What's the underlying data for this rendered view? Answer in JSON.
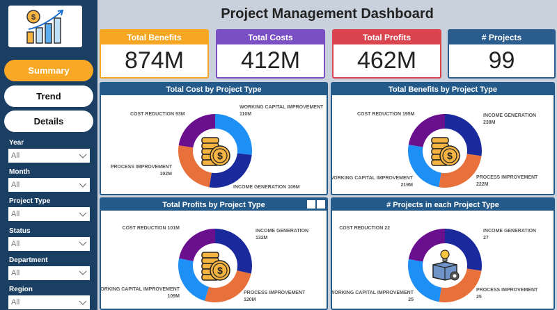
{
  "title": "Project Management Dashboard",
  "sidebar": {
    "nav": [
      {
        "label": "Summary",
        "active": true
      },
      {
        "label": "Trend"
      },
      {
        "label": "Details"
      }
    ],
    "filters": [
      {
        "label": "Year",
        "value": "All"
      },
      {
        "label": "Month",
        "value": "All"
      },
      {
        "label": "Project Type",
        "value": "All"
      },
      {
        "label": "Status",
        "value": "All"
      },
      {
        "label": "Department",
        "value": "All"
      },
      {
        "label": "Region",
        "value": "All"
      }
    ]
  },
  "kpis": [
    {
      "label": "Total Benefits",
      "value": "874M",
      "color": "#f5a623"
    },
    {
      "label": "Total Costs",
      "value": "412M",
      "color": "#7b4fc4"
    },
    {
      "label": "Total Profits",
      "value": "462M",
      "color": "#d9444f"
    },
    {
      "label": "# Projects",
      "value": "99",
      "color": "#2a5d8e"
    }
  ],
  "colors": {
    "WORKING CAPITAL IMPROVEMENT": "#1e8ff5",
    "INCOME GENERATION": "#1a2a9c",
    "PROCESS IMPROVEMENT": "#e8703a",
    "COST REDUCTION": "#6a0f8e"
  },
  "chart_data": [
    {
      "type": "pie",
      "title": "Total Cost by Project Type",
      "categories": [
        "WORKING CAPITAL IMPROVEMENT",
        "INCOME GENERATION",
        "PROCESS IMPROVEMENT",
        "COST REDUCTION"
      ],
      "values": [
        110,
        106,
        102,
        93
      ],
      "labels": [
        "110M",
        "106M",
        "102M",
        "93M"
      ]
    },
    {
      "type": "pie",
      "title": "Total Benefits by Project Type",
      "categories": [
        "INCOME GENERATION",
        "PROCESS IMPROVEMENT",
        "WORKING CAPITAL IMPROVEMENT",
        "COST REDUCTION"
      ],
      "values": [
        238,
        222,
        219,
        195
      ],
      "labels": [
        "238M",
        "222M",
        "219M",
        "195M"
      ]
    },
    {
      "type": "pie",
      "title": "Total Profits by Project Type",
      "categories": [
        "INCOME GENERATION",
        "PROCESS IMPROVEMENT",
        "WORKING CAPITAL IMPROVEMENT",
        "COST REDUCTION"
      ],
      "values": [
        132,
        120,
        109,
        101
      ],
      "labels": [
        "132M",
        "120M",
        "109M",
        "101M"
      ]
    },
    {
      "type": "pie",
      "title": "# Projects in each Project Type",
      "categories": [
        "INCOME GENERATION",
        "PROCESS IMPROVEMENT",
        "WORKING CAPITAL IMPROVEMENT",
        "COST REDUCTION"
      ],
      "values": [
        27,
        25,
        25,
        22
      ],
      "labels": [
        "27",
        "25",
        "25",
        "22"
      ]
    }
  ]
}
